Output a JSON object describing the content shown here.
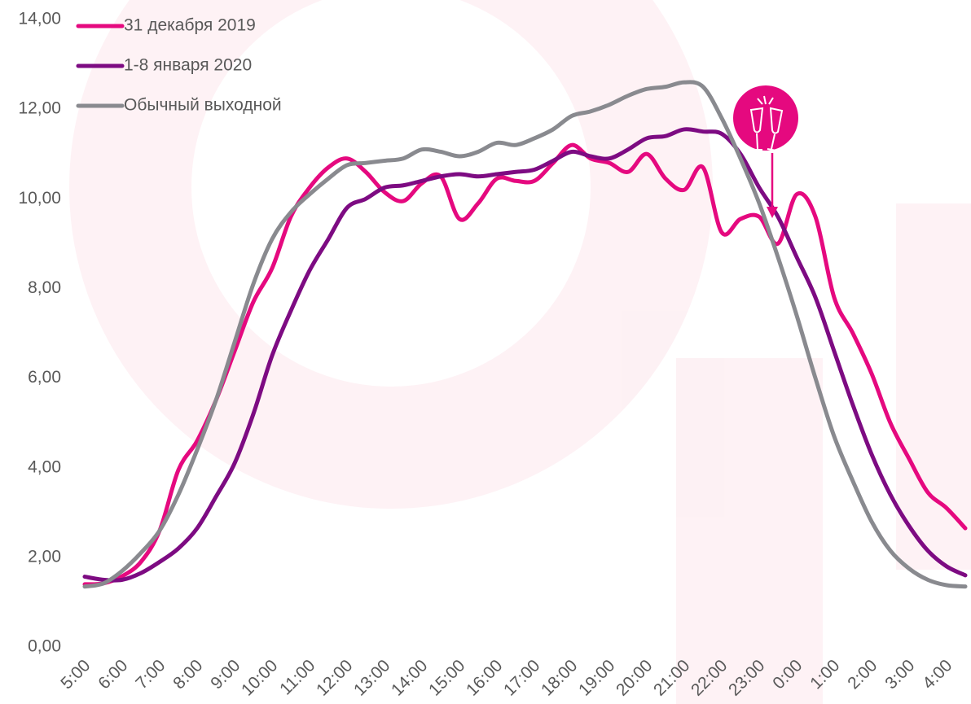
{
  "chart_data": {
    "type": "line",
    "categories": [
      "5:00",
      null,
      "6:00",
      null,
      "7:00",
      null,
      "8:00",
      null,
      "9:00",
      null,
      "10:00",
      null,
      "11:00",
      null,
      "12:00",
      null,
      "13:00",
      null,
      "14:00",
      null,
      "15:00",
      null,
      "16:00",
      null,
      "17:00",
      null,
      "18:00",
      null,
      "19:00",
      null,
      "20:00",
      null,
      "21:00",
      null,
      "22:00",
      null,
      "23:00",
      null,
      "0:00",
      null,
      "1:00",
      null,
      "2:00",
      null,
      "3:00",
      null,
      "4:00",
      null
    ],
    "series": [
      {
        "name": "31 декабря 2019",
        "color": "#e5097f",
        "values": [
          1.4,
          1.42,
          1.58,
          1.9,
          2.6,
          3.95,
          4.6,
          5.5,
          6.6,
          7.7,
          8.45,
          9.6,
          10.25,
          10.7,
          10.9,
          10.6,
          10.15,
          9.95,
          10.35,
          10.5,
          9.55,
          9.9,
          10.45,
          10.4,
          10.4,
          10.8,
          11.2,
          10.9,
          10.8,
          10.6,
          11.0,
          10.45,
          10.2,
          10.7,
          9.25,
          9.55,
          9.6,
          9.0,
          10.1,
          9.6,
          7.8,
          7.0,
          6.1,
          5.0,
          4.2,
          3.45,
          3.1,
          2.65
        ]
      },
      {
        "name": "1-8 января 2020",
        "color": "#7d0b82",
        "values": [
          1.57,
          1.5,
          1.5,
          1.65,
          1.9,
          2.2,
          2.65,
          3.35,
          4.1,
          5.2,
          6.5,
          7.5,
          8.4,
          9.1,
          9.8,
          10.0,
          10.25,
          10.3,
          10.4,
          10.5,
          10.55,
          10.5,
          10.55,
          10.6,
          10.65,
          10.85,
          11.05,
          10.95,
          10.9,
          11.1,
          11.35,
          11.4,
          11.55,
          11.5,
          11.45,
          11.0,
          10.25,
          9.6,
          8.7,
          7.8,
          6.6,
          5.4,
          4.3,
          3.4,
          2.7,
          2.15,
          1.8,
          1.6
        ]
      },
      {
        "name": "Обычный выходной",
        "color": "#898a8f",
        "values": [
          1.35,
          1.42,
          1.7,
          2.1,
          2.6,
          3.4,
          4.4,
          5.5,
          6.8,
          8.1,
          9.1,
          9.7,
          10.1,
          10.45,
          10.75,
          10.8,
          10.85,
          10.9,
          11.1,
          11.05,
          10.95,
          11.05,
          11.25,
          11.2,
          11.35,
          11.55,
          11.85,
          11.95,
          12.1,
          12.3,
          12.45,
          12.5,
          12.6,
          12.5,
          11.8,
          10.9,
          9.9,
          8.7,
          7.4,
          6.0,
          4.7,
          3.7,
          2.8,
          2.15,
          1.75,
          1.5,
          1.38,
          1.35
        ]
      }
    ],
    "ylim": [
      0,
      14
    ],
    "yticks": [
      {
        "value": 0,
        "label": "0,00"
      },
      {
        "value": 2,
        "label": "2,00"
      },
      {
        "value": 4,
        "label": "4,00"
      },
      {
        "value": 6,
        "label": "6,00"
      },
      {
        "value": 8,
        "label": "8,00"
      },
      {
        "value": 10,
        "label": "10,00"
      },
      {
        "value": 12,
        "label": "12,00"
      },
      {
        "value": 14,
        "label": "14,00"
      }
    ],
    "legend": "top-left"
  }
}
